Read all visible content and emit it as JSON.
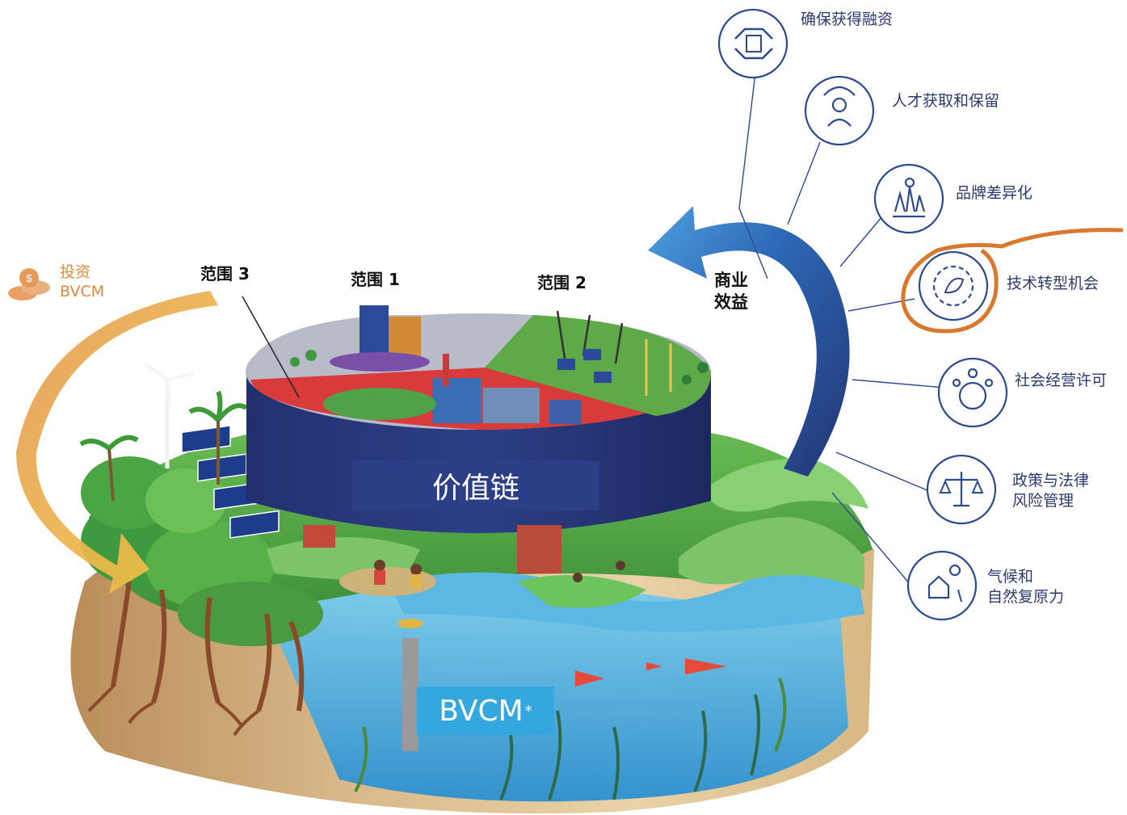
{
  "invest": {
    "line1": "投资",
    "line2": "BVCM",
    "icon": "coins-icon"
  },
  "scopes": {
    "scope3": "范围 3",
    "scope1": "范围 1",
    "scope2": "范围 2"
  },
  "business_benefit": {
    "line1": "商业",
    "line2": "效益"
  },
  "center": {
    "value_chain": "价值链",
    "bvcm": "BVCM",
    "bvcm_mark": "*"
  },
  "benefits": [
    {
      "line1": "确保获得融资",
      "icon": "handshake-icon"
    },
    {
      "line1": "人才获取和保留",
      "icon": "talent-icon"
    },
    {
      "line1": "品牌差异化",
      "icon": "chess-pieces-icon"
    },
    {
      "line1": "技术转型机会",
      "icon": "gear-leaf-icon",
      "highlighted": true
    },
    {
      "line1": "社会经营许可",
      "icon": "community-globe-icon"
    },
    {
      "line1": "政策与法律",
      "line2": "风险管理",
      "icon": "scales-icon"
    },
    {
      "line1": "气候和",
      "line2": "自然复原力",
      "icon": "climate-home-icon"
    }
  ],
  "colors": {
    "accent_orange": "#d9782f",
    "navy": "#2c3f86",
    "ocean": "#35a7df",
    "icon_blue": "#2e4a8e"
  }
}
